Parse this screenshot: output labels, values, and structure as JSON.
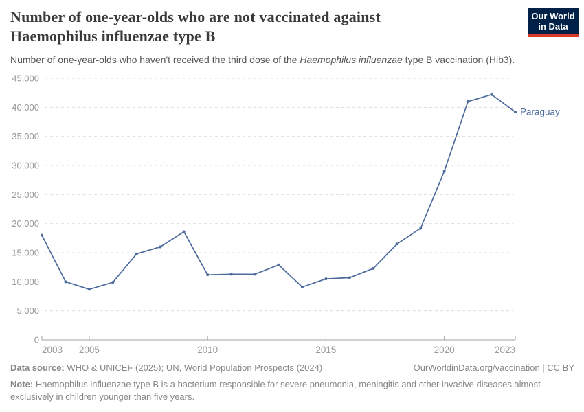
{
  "header": {
    "title_line1": "Number of one-year-olds who are not vaccinated against",
    "title_line2": "Haemophilus influenzae type B",
    "subtitle_prefix": "Number of one-year-olds who haven't received the third dose of the ",
    "subtitle_italic": "Haemophilus influenzae",
    "subtitle_suffix": " type B vaccination (Hib3).",
    "logo": {
      "line1": "Our World",
      "line2": "in Data",
      "bg": "#002147",
      "accent": "#D93B2B"
    }
  },
  "chart_data": {
    "type": "line",
    "title": "Number of one-year-olds who are not vaccinated against Haemophilus influenzae type B",
    "subtitle": "Number of one-year-olds who haven't received the third dose of the Haemophilus influenzae type B vaccination (Hib3).",
    "xlabel": "",
    "ylabel": "",
    "xlim": [
      2003,
      2023
    ],
    "ylim": [
      0,
      45000
    ],
    "x_ticks": [
      2003,
      2005,
      2010,
      2015,
      2020,
      2023
    ],
    "y_ticks": [
      0,
      5000,
      10000,
      15000,
      20000,
      25000,
      30000,
      35000,
      40000,
      45000
    ],
    "grid": "horizontal-dashed",
    "legend_position": "line-end-label",
    "series": [
      {
        "name": "Paraguay",
        "color": "#4C6A9C",
        "x": [
          2003,
          2004,
          2005,
          2006,
          2007,
          2008,
          2009,
          2010,
          2011,
          2012,
          2013,
          2014,
          2015,
          2016,
          2017,
          2018,
          2019,
          2020,
          2021,
          2022,
          2023
        ],
        "values": [
          18000,
          10000,
          8700,
          9900,
          14800,
          16000,
          18600,
          11200,
          11300,
          11300,
          12900,
          9100,
          10500,
          10700,
          12300,
          16500,
          19200,
          29000,
          41000,
          42200,
          39200
        ]
      }
    ],
    "colors": {
      "line": "#4C6A9C",
      "grid": "#dddddd",
      "axis": "#a1a1a1",
      "tick_label": "#999999"
    }
  },
  "footer": {
    "datasource_label": "Data source:",
    "datasource_text": " WHO & UNICEF (2025); UN, World Population Prospects (2024)",
    "link_text": "OurWorldinData.org/vaccination | CC BY",
    "note_label": "Note:",
    "note_text": " Haemophilus influenzae type B is a bacterium responsible for severe pneumonia, meningitis and other invasive diseases almost exclusively in children younger than five years."
  }
}
